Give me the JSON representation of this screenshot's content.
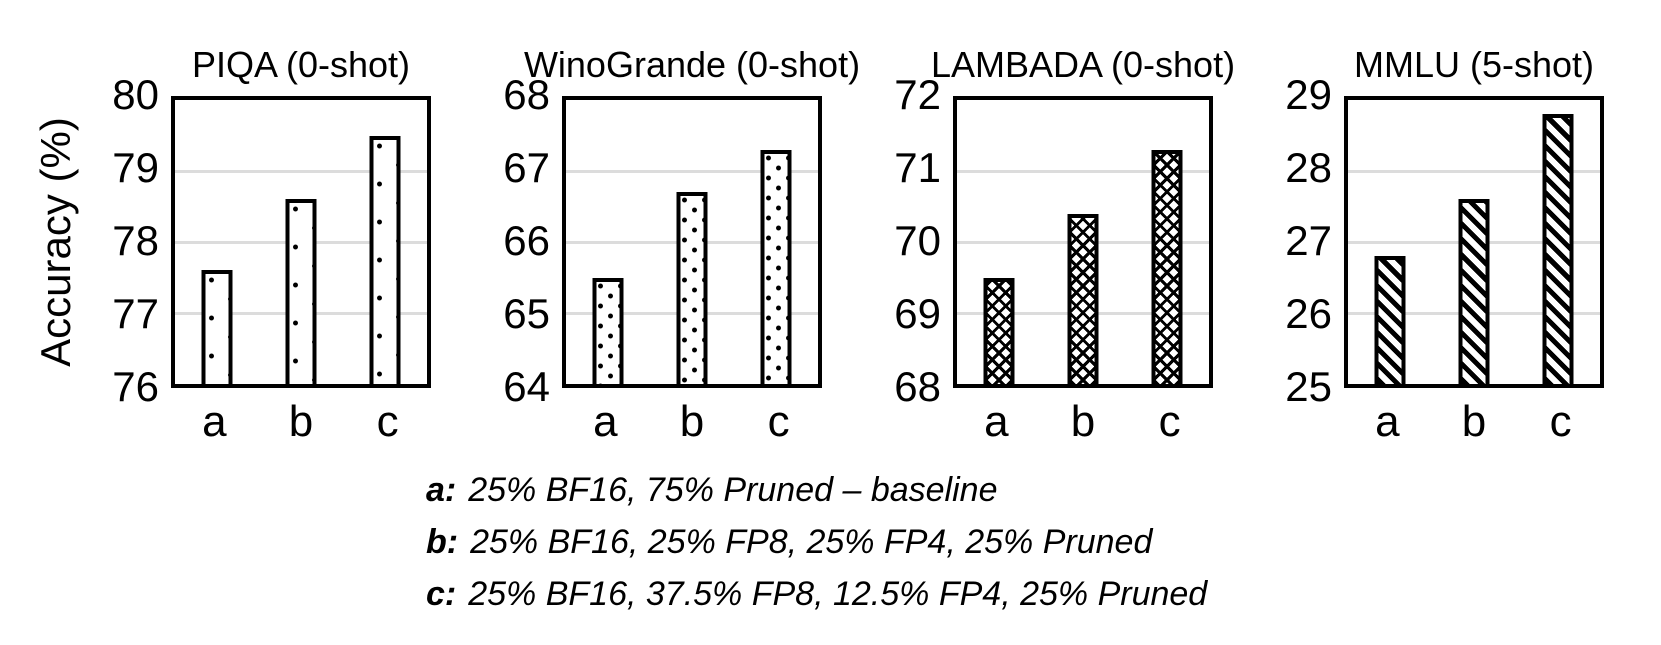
{
  "figure": {
    "ylabel": "Accuracy (%)"
  },
  "chart_data": [
    {
      "type": "bar",
      "title": "PIQA (0-shot)",
      "categories": [
        "a",
        "b",
        "c"
      ],
      "values": [
        77.6,
        78.6,
        79.5
      ],
      "ylim": [
        76,
        80
      ],
      "yticks": [
        76,
        77,
        78,
        79,
        80
      ],
      "grid": true,
      "legend_position": "none",
      "pattern": "sparse-dots"
    },
    {
      "type": "bar",
      "title": "WinoGrande (0-shot)",
      "categories": [
        "a",
        "b",
        "c"
      ],
      "values": [
        65.5,
        66.7,
        67.3
      ],
      "ylim": [
        64,
        68
      ],
      "yticks": [
        64,
        65,
        66,
        67,
        68
      ],
      "grid": true,
      "legend_position": "none",
      "pattern": "dots"
    },
    {
      "type": "bar",
      "title": "LAMBADA (0-shot)",
      "categories": [
        "a",
        "b",
        "c"
      ],
      "values": [
        69.5,
        70.4,
        71.3
      ],
      "ylim": [
        68,
        72
      ],
      "yticks": [
        68,
        69,
        70,
        71,
        72
      ],
      "grid": true,
      "legend_position": "none",
      "pattern": "diamond-check"
    },
    {
      "type": "bar",
      "title": "MMLU (5-shot)",
      "categories": [
        "a",
        "b",
        "c"
      ],
      "values": [
        26.8,
        27.6,
        28.8
      ],
      "ylim": [
        25,
        29
      ],
      "yticks": [
        25,
        26,
        27,
        28,
        29
      ],
      "grid": true,
      "legend_position": "none",
      "pattern": "diagonal-stripes"
    }
  ],
  "legend": {
    "items": [
      {
        "key": "a:",
        "text": "25% BF16, 75% Pruned – baseline"
      },
      {
        "key": "b:",
        "text": "25% BF16, 25% FP8, 25% FP4, 25% Pruned"
      },
      {
        "key": "c:",
        "text": "25% BF16, 37.5% FP8, 12.5% FP4, 25% Pruned"
      }
    ]
  },
  "colors": {
    "axis": "#000000",
    "gridline": "#dcdcdc",
    "bar_fill": "#ffffff",
    "pattern_ink": "#000000",
    "text": "#000000",
    "background": "#ffffff"
  }
}
